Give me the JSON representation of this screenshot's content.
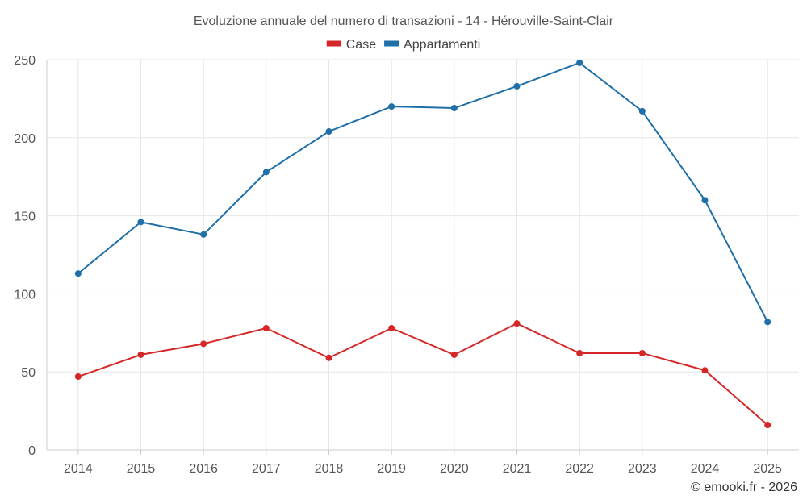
{
  "chart_data": {
    "type": "line",
    "title": "Evoluzione annuale del numero di transazioni - 14 - Hérouville-Saint-Clair",
    "xlabel": "",
    "ylabel": "",
    "ylim": [
      0,
      250
    ],
    "yticks": [
      0,
      50,
      100,
      150,
      200,
      250
    ],
    "categories": [
      "2014",
      "2015",
      "2016",
      "2017",
      "2018",
      "2019",
      "2020",
      "2021",
      "2022",
      "2023",
      "2024",
      "2025"
    ],
    "grid": true,
    "legend_position": "top-center",
    "series": [
      {
        "name": "Case",
        "color": "#d62728",
        "values": [
          47,
          61,
          68,
          78,
          59,
          78,
          61,
          81,
          62,
          62,
          51,
          16
        ]
      },
      {
        "name": "Appartamenti",
        "color": "#1f6fa8",
        "values": [
          113,
          146,
          138,
          178,
          204,
          220,
          219,
          233,
          248,
          217,
          160,
          82
        ]
      }
    ],
    "credit": "© emooki.fr - 2026"
  }
}
